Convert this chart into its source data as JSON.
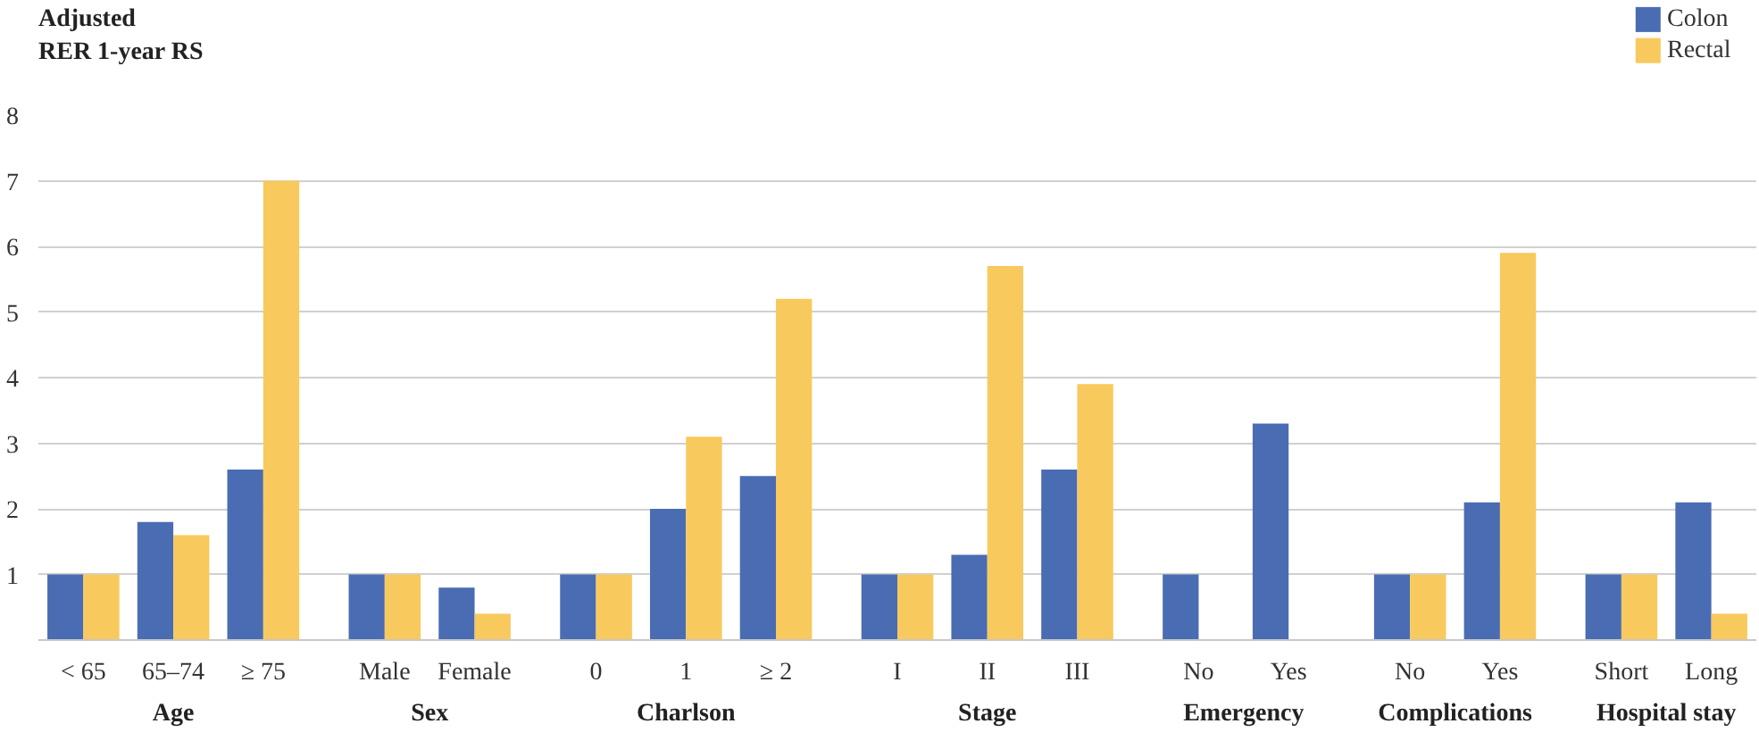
{
  "chart_data": {
    "type": "bar",
    "ylabel": "Adjusted\nRER 1-year RS",
    "categories": [
      "< 65",
      "65–74",
      "≥ 75",
      null,
      "Male",
      "Female",
      null,
      "0",
      "1",
      "≥ 2",
      null,
      "I",
      "II",
      "III",
      null,
      "No",
      "Yes",
      null,
      "No",
      "Yes",
      null,
      "Short",
      "Long"
    ],
    "annotations": [
      "Age",
      "Sex",
      "Charlson",
      "Stage",
      "Emergency",
      "Complications",
      "Hospital stay"
    ],
    "series": [
      {
        "name": "Colon",
        "color": "#4a6cb3",
        "values": [
          1,
          1.8,
          2.6,
          null,
          1,
          0.8,
          null,
          1,
          2.0,
          2.5,
          null,
          1,
          1.3,
          2.6,
          null,
          1,
          3.3,
          null,
          1,
          2.1,
          null,
          1,
          2.1
        ]
      },
      {
        "name": "Rectal",
        "color": "#f8c95c",
        "values": [
          1,
          1.6,
          7.0,
          null,
          1,
          0.4,
          null,
          1,
          3.1,
          5.2,
          null,
          1,
          5.7,
          3.9,
          null,
          null,
          null,
          null,
          1,
          5.9,
          null,
          1,
          0.4
        ]
      }
    ],
    "ylim": [
      0,
      8
    ],
    "yticks": [
      {
        "value": 0,
        "label": null
      },
      1,
      2,
      3,
      4,
      5,
      6,
      7,
      8
    ],
    "grid": "y",
    "legend": "top right"
  }
}
